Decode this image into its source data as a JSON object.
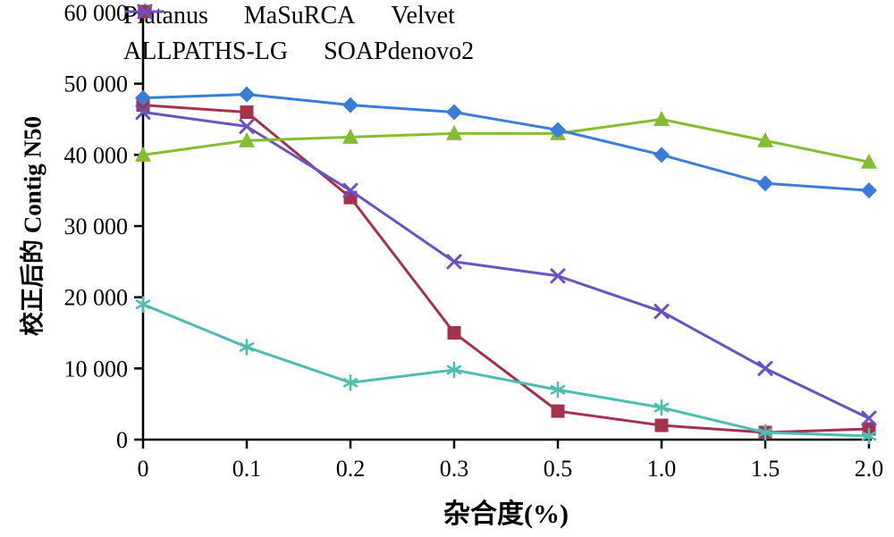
{
  "chart_data": {
    "type": "line",
    "title": "",
    "xlabel": "杂合度(%)",
    "ylabel": "校正后的 Contig N50",
    "categories": [
      "0",
      "0.1",
      "0.2",
      "0.3",
      "0.5",
      "1.0",
      "1.5",
      "2.0"
    ],
    "ylim": [
      0,
      60000
    ],
    "ytick_interval": 10000,
    "ytick_labels": [
      "0",
      "10 000",
      "20 000",
      "30 000",
      "40 000",
      "50 000",
      "60 000"
    ],
    "grid": false,
    "legend_position": "top-left-inside",
    "series": [
      {
        "name": "ALLPATHS-LG",
        "color": "#a5324c",
        "marker": "square",
        "values": [
          47000,
          46000,
          34000,
          15000,
          4000,
          2000,
          1000,
          1500
        ]
      },
      {
        "name": "SOAPdenovo2",
        "color": "#6a52c3",
        "marker": "x",
        "values": [
          46000,
          44000,
          35000,
          25000,
          23000,
          18000,
          10000,
          3000
        ]
      },
      {
        "name": "Velvet",
        "color": "#4dbcb2",
        "marker": "asterisk",
        "values": [
          19000,
          13000,
          8000,
          9800,
          7000,
          4500,
          1000,
          500
        ]
      },
      {
        "name": "MaSuRCA",
        "color": "#85bd32",
        "marker": "triangle",
        "values": [
          40000,
          42000,
          42500,
          43000,
          43000,
          45000,
          42000,
          39000
        ]
      },
      {
        "name": "Platanus",
        "color": "#3a7dd9",
        "marker": "diamond",
        "values": [
          48000,
          48500,
          47000,
          46000,
          43500,
          40000,
          36000,
          35000
        ]
      }
    ]
  },
  "legend": {
    "rows": [
      [
        "Platanus",
        "MaSuRCA",
        "Velvet"
      ],
      [
        "ALLPATHS-LG",
        "SOAPdenovo2"
      ]
    ]
  }
}
